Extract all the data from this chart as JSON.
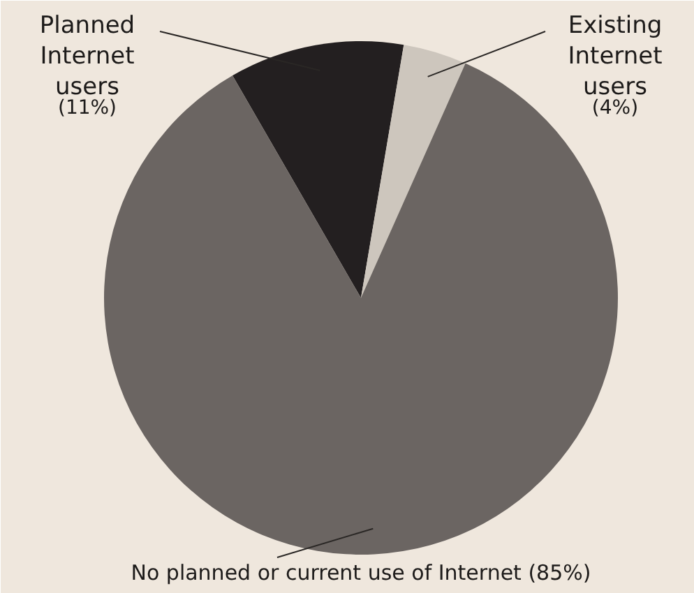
{
  "chart_data": {
    "type": "pie",
    "categories": [
      "Planned Internet users",
      "Existing Internet users",
      "No planned or current use of Internet"
    ],
    "values": [
      11,
      4,
      85
    ],
    "colors": [
      "#231f20",
      "#cdc6bd",
      "#6b6562"
    ],
    "value_labels": [
      "(11%)",
      "(4%)",
      "(85%)"
    ]
  }
}
